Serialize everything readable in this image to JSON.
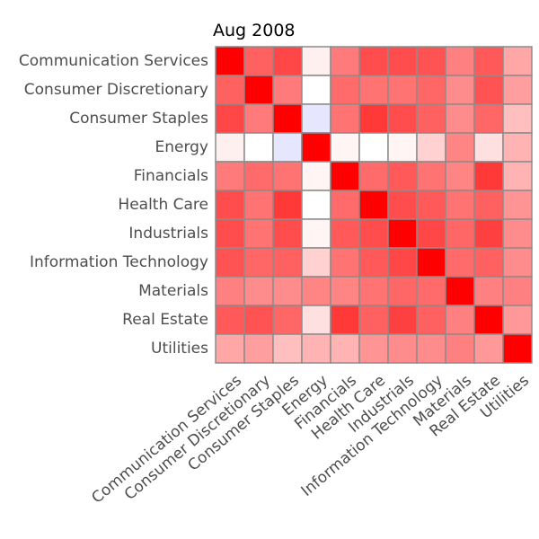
{
  "chart_data": {
    "type": "heatmap",
    "title": "Aug 2008",
    "xlabel": "",
    "ylabel": "",
    "categories": [
      "Communication Services",
      "Consumer Discretionary",
      "Consumer Staples",
      "Energy",
      "Financials",
      "Health Care",
      "Industrials",
      "Information Technology",
      "Materials",
      "Real Estate",
      "Utilities"
    ],
    "value_range": [
      -1,
      1
    ],
    "color_scale": {
      "negative": "#0000ff",
      "zero": "#ffffff",
      "positive": "#ff0000"
    },
    "cell_border_color": "#8c8c8c",
    "values": [
      [
        1.0,
        0.62,
        0.72,
        0.06,
        0.52,
        0.7,
        0.7,
        0.68,
        0.5,
        0.65,
        0.35
      ],
      [
        0.62,
        1.0,
        0.52,
        0.0,
        0.58,
        0.55,
        0.55,
        0.6,
        0.45,
        0.68,
        0.38
      ],
      [
        0.72,
        0.52,
        1.0,
        -0.1,
        0.55,
        0.78,
        0.7,
        0.62,
        0.45,
        0.6,
        0.25
      ],
      [
        0.06,
        0.0,
        -0.1,
        1.0,
        0.04,
        0.0,
        0.04,
        0.18,
        0.48,
        0.12,
        0.3
      ],
      [
        0.52,
        0.58,
        0.55,
        0.04,
        1.0,
        0.58,
        0.65,
        0.55,
        0.48,
        0.78,
        0.3
      ],
      [
        0.7,
        0.55,
        0.78,
        0.0,
        0.58,
        1.0,
        0.7,
        0.65,
        0.55,
        0.62,
        0.42
      ],
      [
        0.7,
        0.55,
        0.7,
        0.04,
        0.65,
        0.7,
        1.0,
        0.72,
        0.6,
        0.75,
        0.45
      ],
      [
        0.68,
        0.6,
        0.62,
        0.18,
        0.55,
        0.65,
        0.72,
        1.0,
        0.58,
        0.62,
        0.45
      ],
      [
        0.5,
        0.45,
        0.45,
        0.48,
        0.48,
        0.55,
        0.6,
        0.58,
        1.0,
        0.5,
        0.5
      ],
      [
        0.65,
        0.68,
        0.6,
        0.12,
        0.78,
        0.62,
        0.75,
        0.62,
        0.5,
        1.0,
        0.4
      ],
      [
        0.35,
        0.38,
        0.25,
        0.3,
        0.3,
        0.42,
        0.45,
        0.45,
        0.5,
        0.4,
        1.0
      ]
    ],
    "grid": false,
    "legend": "none"
  }
}
